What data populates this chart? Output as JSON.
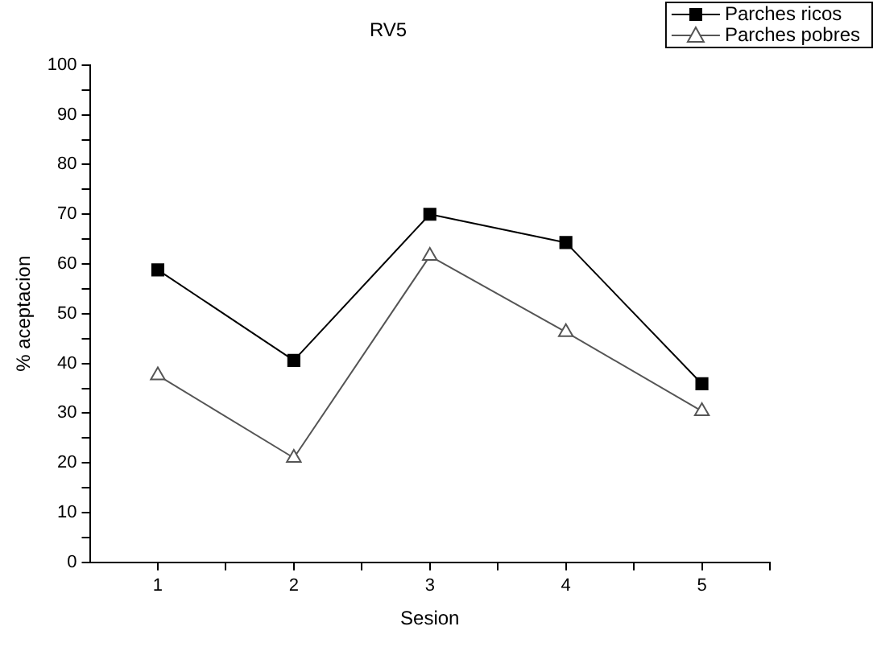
{
  "chart_data": {
    "type": "line",
    "title": "RV5",
    "xlabel": "Sesion",
    "ylabel": "% aceptacion",
    "x": [
      1,
      2,
      3,
      4,
      5
    ],
    "series": [
      {
        "name": "Parches ricos",
        "color": "#000000",
        "marker": "square",
        "values": [
          58.8,
          40.6,
          70,
          64.3,
          35.9
        ]
      },
      {
        "name": "Parches pobres",
        "color": "#555555",
        "marker": "triangle",
        "values": [
          37.6,
          21,
          61.6,
          46.3,
          30.4
        ]
      }
    ],
    "xlim": [
      0.5,
      5.5
    ],
    "xticks": [
      1,
      {
        "value": 1.5,
        "label": null
      },
      2,
      {
        "value": 2.5,
        "label": null
      },
      3,
      {
        "value": 3.5,
        "label": null
      },
      4,
      {
        "value": 4.5,
        "label": null
      },
      5,
      {
        "value": 5.5,
        "label": null
      }
    ],
    "ylim": [
      0,
      100
    ],
    "yticks": [
      0,
      {
        "value": 5,
        "label": null
      },
      10,
      {
        "value": 15,
        "label": null
      },
      20,
      {
        "value": 25,
        "label": null
      },
      30,
      {
        "value": 35,
        "label": null
      },
      40,
      {
        "value": 45,
        "label": null
      },
      50,
      {
        "value": 55,
        "label": null
      },
      60,
      {
        "value": 65,
        "label": null
      },
      70,
      {
        "value": 75,
        "label": null
      },
      80,
      {
        "value": 85,
        "label": null
      },
      90,
      {
        "value": 95,
        "label": null
      },
      100
    ],
    "grid": false,
    "legend": "top right",
    "line_style": "solid"
  }
}
